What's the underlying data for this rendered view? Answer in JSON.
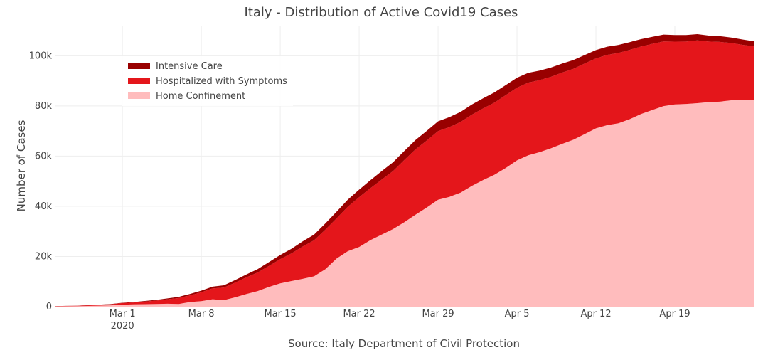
{
  "chart_data": {
    "type": "area",
    "stacked": true,
    "title": "Italy - Distribution of Active Covid19 Cases",
    "ylabel": "Number of Cases",
    "xlabel": "Source: Italy Department of Civil Protection",
    "x_start": "2020-02-24",
    "x_end": "2020-04-26",
    "xlim": [
      "2020-02-24",
      "2020-04-26"
    ],
    "ylim": [
      0,
      112000
    ],
    "x_ticks": [
      {
        "date": "2020-03-01",
        "label": "Mar 1",
        "sublabel": "2020"
      },
      {
        "date": "2020-03-08",
        "label": "Mar 8"
      },
      {
        "date": "2020-03-15",
        "label": "Mar 15"
      },
      {
        "date": "2020-03-22",
        "label": "Mar 22"
      },
      {
        "date": "2020-03-29",
        "label": "Mar 29"
      },
      {
        "date": "2020-04-05",
        "label": "Apr 5"
      },
      {
        "date": "2020-04-12",
        "label": "Apr 12"
      },
      {
        "date": "2020-04-19",
        "label": "Apr 19"
      }
    ],
    "y_ticks": [
      {
        "value": 0,
        "label": "0"
      },
      {
        "value": 20000,
        "label": "20k"
      },
      {
        "value": 40000,
        "label": "40k"
      },
      {
        "value": 60000,
        "label": "60k"
      },
      {
        "value": 80000,
        "label": "80k"
      },
      {
        "value": 100000,
        "label": "100k"
      }
    ],
    "grid": true,
    "legend_position": "top-left",
    "x": [
      "2020-02-24",
      "2020-02-25",
      "2020-02-26",
      "2020-02-27",
      "2020-02-28",
      "2020-02-29",
      "2020-03-01",
      "2020-03-02",
      "2020-03-03",
      "2020-03-04",
      "2020-03-05",
      "2020-03-06",
      "2020-03-07",
      "2020-03-08",
      "2020-03-09",
      "2020-03-10",
      "2020-03-11",
      "2020-03-12",
      "2020-03-13",
      "2020-03-14",
      "2020-03-15",
      "2020-03-16",
      "2020-03-17",
      "2020-03-18",
      "2020-03-19",
      "2020-03-20",
      "2020-03-21",
      "2020-03-22",
      "2020-03-23",
      "2020-03-24",
      "2020-03-25",
      "2020-03-26",
      "2020-03-27",
      "2020-03-28",
      "2020-03-29",
      "2020-03-30",
      "2020-03-31",
      "2020-04-01",
      "2020-04-02",
      "2020-04-03",
      "2020-04-04",
      "2020-04-05",
      "2020-04-06",
      "2020-04-07",
      "2020-04-08",
      "2020-04-09",
      "2020-04-10",
      "2020-04-11",
      "2020-04-12",
      "2020-04-13",
      "2020-04-14",
      "2020-04-15",
      "2020-04-16",
      "2020-04-17",
      "2020-04-18",
      "2020-04-19",
      "2020-04-20",
      "2020-04-21",
      "2020-04-22",
      "2020-04-23",
      "2020-04-24",
      "2020-04-25",
      "2020-04-26"
    ],
    "series": [
      {
        "name": "Home Confinement",
        "color": "#ffbcbd",
        "values": [
          94,
          162,
          221,
          284,
          412,
          543,
          798,
          927,
          1000,
          1065,
          1155,
          1060,
          1843,
          2180,
          2936,
          2599,
          3724,
          5036,
          6201,
          7860,
          9268,
          10197,
          11108,
          12090,
          14935,
          19185,
          22116,
          23783,
          26522,
          28697,
          30920,
          33648,
          36653,
          39533,
          42588,
          43752,
          45420,
          48134,
          50456,
          52579,
          55270,
          58320,
          60313,
          61557,
          63084,
          64873,
          66534,
          68744,
          71063,
          72333,
          73094,
          74696,
          76778,
          78364,
          79914,
          80589,
          80758,
          81104,
          81510,
          81708,
          82212,
          82286,
          82212
        ]
      },
      {
        "name": "Hospitalized with Symptoms",
        "color": "#e4161b",
        "values": [
          101,
          114,
          128,
          248,
          345,
          401,
          639,
          742,
          1034,
          1346,
          1790,
          2394,
          2651,
          3557,
          4316,
          5038,
          5838,
          6650,
          7426,
          8372,
          9663,
          11025,
          12894,
          14363,
          15757,
          16020,
          17708,
          19846,
          20692,
          21937,
          23112,
          24753,
          26029,
          26676,
          27386,
          27795,
          28192,
          28403,
          28540,
          28741,
          29010,
          28949,
          28976,
          28718,
          28485,
          28399,
          28242,
          28144,
          27847,
          28011,
          28023,
          27643,
          26893,
          26363,
          25786,
          25033,
          24906,
          25007,
          24134,
          23805,
          22871,
          22068,
          21533
        ]
      },
      {
        "name": "Intensive Care",
        "color": "#990000",
        "values": [
          26,
          35,
          36,
          56,
          64,
          105,
          140,
          166,
          229,
          295,
          351,
          462,
          567,
          650,
          733,
          877,
          1028,
          1153,
          1328,
          1518,
          1672,
          1851,
          2060,
          2257,
          2498,
          2655,
          2857,
          3009,
          3204,
          3396,
          3489,
          3612,
          3732,
          3856,
          3906,
          3981,
          4023,
          4035,
          4053,
          4068,
          3994,
          3977,
          3898,
          3792,
          3693,
          3605,
          3497,
          3381,
          3343,
          3260,
          3186,
          3079,
          2936,
          2812,
          2733,
          2635,
          2573,
          2471,
          2384,
          2267,
          2173,
          2102,
          2009
        ]
      }
    ],
    "legend_order": [
      "Intensive Care",
      "Hospitalized with Symptoms",
      "Home Confinement"
    ]
  }
}
